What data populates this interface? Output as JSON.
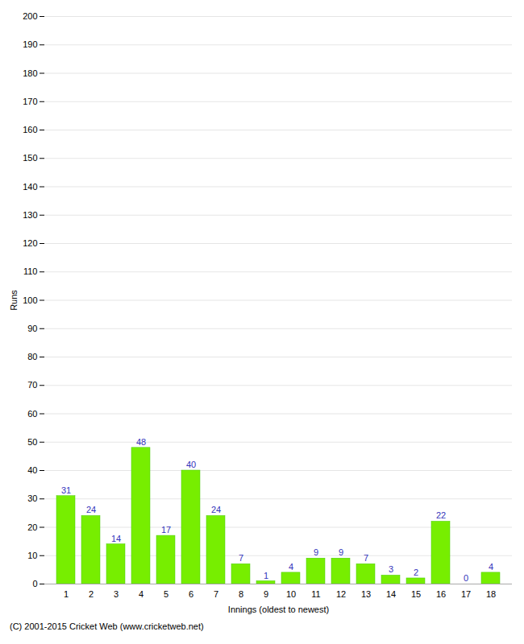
{
  "chart_data": {
    "type": "bar",
    "xlabel": "Innings (oldest to newest)",
    "ylabel": "Runs",
    "categories": [
      1,
      2,
      3,
      4,
      5,
      6,
      7,
      8,
      9,
      10,
      11,
      12,
      13,
      14,
      15,
      16,
      17,
      18
    ],
    "values": [
      31,
      24,
      14,
      48,
      17,
      40,
      24,
      7,
      1,
      4,
      9,
      9,
      7,
      3,
      2,
      22,
      0,
      4
    ],
    "color": "#77ee00",
    "ylim": [
      0,
      200
    ],
    "yticks": [
      0,
      10,
      20,
      30,
      40,
      50,
      60,
      70,
      80,
      90,
      100,
      110,
      120,
      130,
      140,
      150,
      160,
      170,
      180,
      190,
      200
    ],
    "grid": true,
    "data_labels": true,
    "caption": "(C) 2001-2015 Cricket Web (www.cricketweb.net)"
  }
}
